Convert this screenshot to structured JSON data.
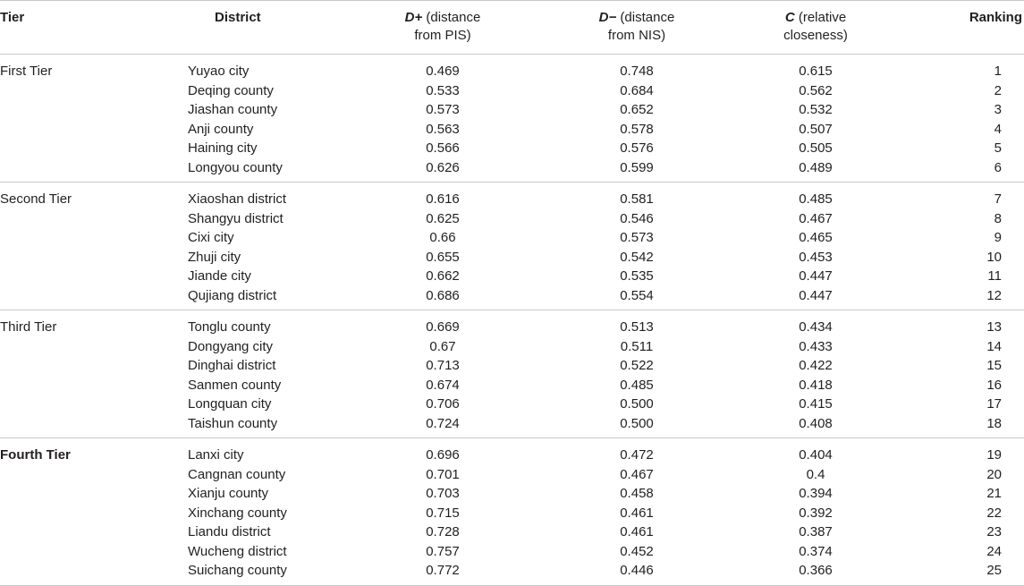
{
  "header": {
    "tier": "Tier",
    "district": "District",
    "dplus_var": "D+",
    "dplus_line1_rest": " (distance",
    "dplus_line2": "from PIS)",
    "dminus_var": "D−",
    "dminus_line1_rest": " (distance",
    "dminus_line2": "from NIS)",
    "c_var": "C",
    "c_line1_rest": " (relative",
    "c_line2": "closeness)",
    "ranking": "Ranking"
  },
  "groups": [
    {
      "tier": "First Tier",
      "bold": false,
      "rows": [
        {
          "district": "Yuyao city",
          "dplus": "0.469",
          "dminus": "0.748",
          "c": "0.615",
          "rank": "1"
        },
        {
          "district": "Deqing county",
          "dplus": "0.533",
          "dminus": "0.684",
          "c": "0.562",
          "rank": "2"
        },
        {
          "district": "Jiashan county",
          "dplus": "0.573",
          "dminus": "0.652",
          "c": "0.532",
          "rank": "3"
        },
        {
          "district": "Anji county",
          "dplus": "0.563",
          "dminus": "0.578",
          "c": "0.507",
          "rank": "4"
        },
        {
          "district": "Haining city",
          "dplus": "0.566",
          "dminus": "0.576",
          "c": "0.505",
          "rank": "5"
        },
        {
          "district": "Longyou county",
          "dplus": "0.626",
          "dminus": "0.599",
          "c": "0.489",
          "rank": "6"
        }
      ]
    },
    {
      "tier": "Second Tier",
      "bold": false,
      "rows": [
        {
          "district": "Xiaoshan district",
          "dplus": "0.616",
          "dminus": "0.581",
          "c": "0.485",
          "rank": "7"
        },
        {
          "district": "Shangyu district",
          "dplus": "0.625",
          "dminus": "0.546",
          "c": "0.467",
          "rank": "8"
        },
        {
          "district": "Cixi city",
          "dplus": "0.66",
          "dminus": "0.573",
          "c": "0.465",
          "rank": "9"
        },
        {
          "district": "Zhuji city",
          "dplus": "0.655",
          "dminus": "0.542",
          "c": "0.453",
          "rank": "10"
        },
        {
          "district": "Jiande city",
          "dplus": "0.662",
          "dminus": "0.535",
          "c": "0.447",
          "rank": "11"
        },
        {
          "district": "Qujiang district",
          "dplus": "0.686",
          "dminus": "0.554",
          "c": "0.447",
          "rank": "12"
        }
      ]
    },
    {
      "tier": "Third Tier",
      "bold": false,
      "rows": [
        {
          "district": "Tonglu county",
          "dplus": "0.669",
          "dminus": "0.513",
          "c": "0.434",
          "rank": "13"
        },
        {
          "district": "Dongyang city",
          "dplus": "0.67",
          "dminus": "0.511",
          "c": "0.433",
          "rank": "14"
        },
        {
          "district": "Dinghai district",
          "dplus": "0.713",
          "dminus": "0.522",
          "c": "0.422",
          "rank": "15"
        },
        {
          "district": "Sanmen county",
          "dplus": "0.674",
          "dminus": "0.485",
          "c": "0.418",
          "rank": "16"
        },
        {
          "district": "Longquan city",
          "dplus": "0.706",
          "dminus": "0.500",
          "c": "0.415",
          "rank": "17"
        },
        {
          "district": "Taishun county",
          "dplus": "0.724",
          "dminus": "0.500",
          "c": "0.408",
          "rank": "18"
        }
      ]
    },
    {
      "tier": "Fourth Tier",
      "bold": true,
      "rows": [
        {
          "district": "Lanxi city",
          "dplus": "0.696",
          "dminus": "0.472",
          "c": "0.404",
          "rank": "19"
        },
        {
          "district": "Cangnan county",
          "dplus": "0.701",
          "dminus": "0.467",
          "c": "0.4",
          "rank": "20"
        },
        {
          "district": "Xianju county",
          "dplus": "0.703",
          "dminus": "0.458",
          "c": "0.394",
          "rank": "21"
        },
        {
          "district": "Xinchang county",
          "dplus": "0.715",
          "dminus": "0.461",
          "c": "0.392",
          "rank": "22"
        },
        {
          "district": "Liandu district",
          "dplus": "0.728",
          "dminus": "0.461",
          "c": "0.387",
          "rank": "23"
        },
        {
          "district": "Wucheng district",
          "dplus": "0.757",
          "dminus": "0.452",
          "c": "0.374",
          "rank": "24"
        },
        {
          "district": "Suichang county",
          "dplus": "0.772",
          "dminus": "0.446",
          "c": "0.366",
          "rank": "25"
        }
      ]
    }
  ]
}
